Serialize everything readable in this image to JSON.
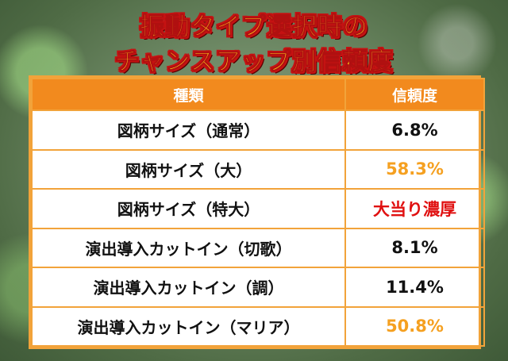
{
  "title": {
    "line1": "振動タイプ選択時の",
    "line2": "チャンスアップ別信頼度"
  },
  "table": {
    "headers": [
      "種類",
      "信頼度"
    ],
    "rows": [
      {
        "type": "図柄サイズ（通常）",
        "reliability": "6.8%",
        "color": "#111111"
      },
      {
        "type": "図柄サイズ（大）",
        "reliability": "58.3%",
        "color": "#f5a020"
      },
      {
        "type": "図柄サイズ（特大）",
        "reliability": "大当り濃厚",
        "color": "#e01010"
      },
      {
        "type": "演出導入カットイン（切歌）",
        "reliability": "8.1%",
        "color": "#111111"
      },
      {
        "type": "演出導入カットイン（調）",
        "reliability": "11.4%",
        "color": "#111111"
      },
      {
        "type": "演出導入カットイン（マリア）",
        "reliability": "50.8%",
        "color": "#f5a020"
      }
    ]
  },
  "colors": {
    "header_bg": "#f28a1e",
    "border": "#f2a33a",
    "title_fill": "#ffd21a",
    "title_outline": "#c51212"
  }
}
